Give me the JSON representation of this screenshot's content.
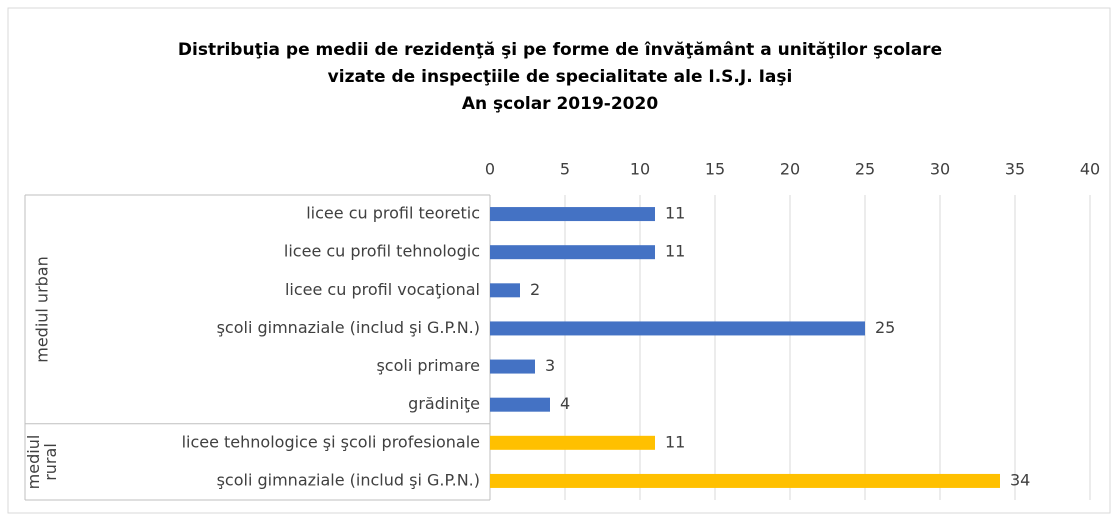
{
  "chart_data": {
    "type": "bar",
    "orientation": "horizontal",
    "title": [
      "Distribuţia pe medii de rezidenţă şi pe forme de învăţământ a unităţilor şcolare",
      "vizate de inspecţiile de specialitate ale I.S.J. Iaşi",
      "An şcolar 2019-2020"
    ],
    "series": [
      {
        "name": "mediul urban",
        "color": "#4472c4",
        "categories": [
          "licee cu profil teoretic",
          "licee cu profil tehnologic",
          "licee cu profil vocaţional",
          "şcoli gimnaziale (includ şi G.P.N.)",
          "şcoli primare",
          "grădiniţe"
        ],
        "values": [
          11,
          11,
          2,
          25,
          3,
          4
        ]
      },
      {
        "name": "mediul rural",
        "color": "#ffc000",
        "categories": [
          "licee tehnologice şi şcoli profesionale",
          "şcoli gimnaziale (includ şi G.P.N.)"
        ],
        "values": [
          11,
          34
        ]
      }
    ],
    "xlim": [
      0,
      40
    ],
    "xticks": [
      0,
      5,
      10,
      15,
      20,
      25,
      30,
      35,
      40
    ],
    "grid": true
  }
}
